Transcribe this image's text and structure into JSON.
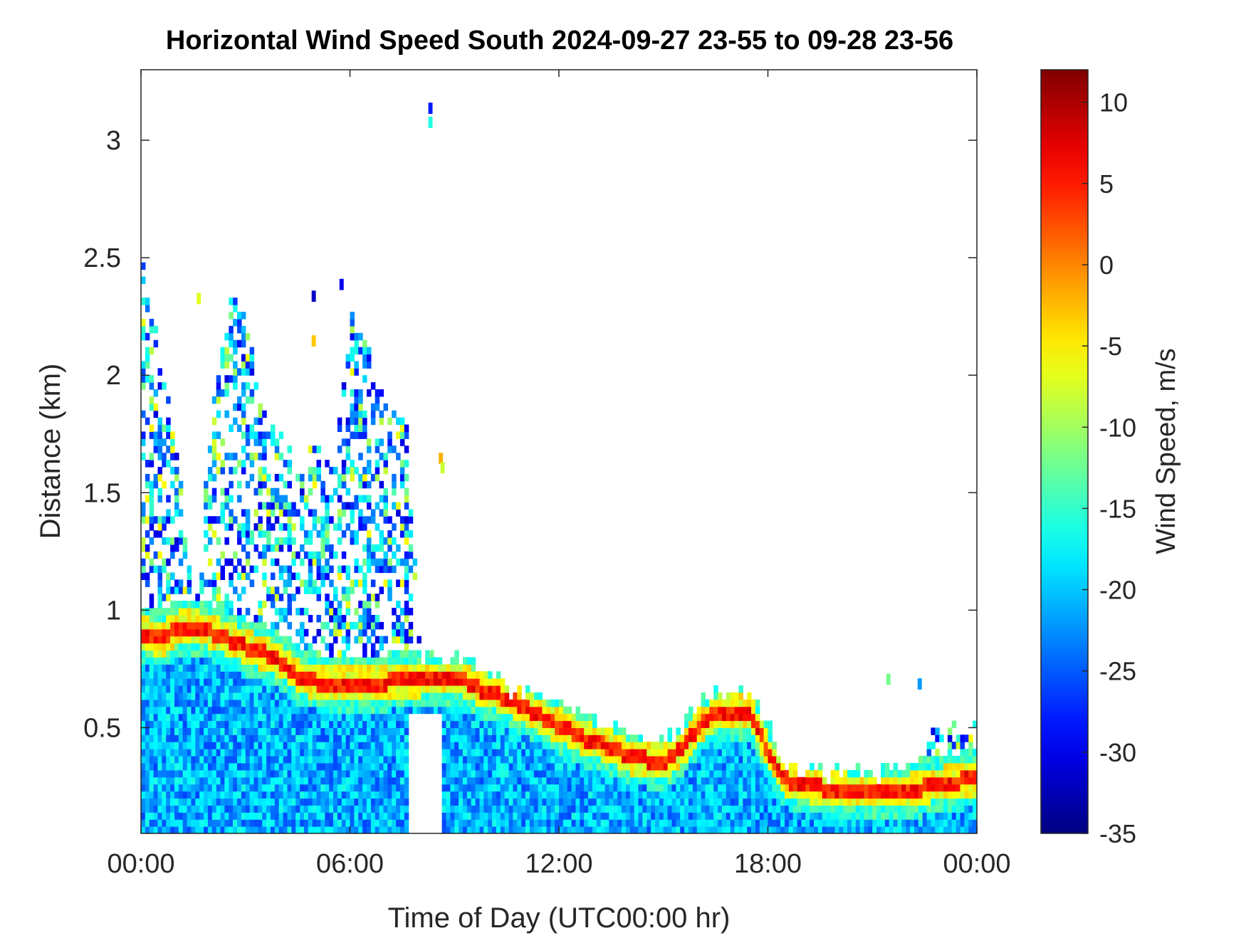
{
  "chart_data": {
    "type": "heatmap",
    "title": "Horizontal Wind Speed South 2024-09-27 23-55 to 09-28 23-56",
    "xlabel": "Time of Day (UTC00:00 hr)",
    "ylabel": "Distance (km)",
    "colorbar_label": "Wind Speed, m/s",
    "x_ticks": [
      {
        "value": 0,
        "label": "00:00"
      },
      {
        "value": 6,
        "label": "06:00"
      },
      {
        "value": 12,
        "label": "12:00"
      },
      {
        "value": 18,
        "label": "18:00"
      },
      {
        "value": 24,
        "label": "00:00"
      }
    ],
    "y_ticks": [
      {
        "value": 0.5,
        "label": "0.5"
      },
      {
        "value": 1,
        "label": "1"
      },
      {
        "value": 1.5,
        "label": "1.5"
      },
      {
        "value": 2,
        "label": "2"
      },
      {
        "value": 2.5,
        "label": "2.5"
      },
      {
        "value": 3,
        "label": "3"
      }
    ],
    "colorbar_ticks": [
      {
        "value": 10,
        "label": "10"
      },
      {
        "value": 5,
        "label": "5"
      },
      {
        "value": 0,
        "label": "0"
      },
      {
        "value": -5,
        "label": "-5"
      },
      {
        "value": -10,
        "label": "-10"
      },
      {
        "value": -15,
        "label": "-15"
      },
      {
        "value": -20,
        "label": "-20"
      },
      {
        "value": -25,
        "label": "-25"
      },
      {
        "value": -30,
        "label": "-30"
      },
      {
        "value": -35,
        "label": "-35"
      }
    ],
    "xlim": [
      0,
      24
    ],
    "ylim": [
      0.05,
      3.3
    ],
    "clim": [
      -35,
      12
    ],
    "colormap": "jet",
    "grid": false,
    "cell_size": {
      "dt_hours": 0.12,
      "dz_km": 0.03
    },
    "jet_band": [
      [
        0.0,
        0.89
      ],
      [
        0.5,
        0.86
      ],
      [
        1.0,
        0.91
      ],
      [
        1.5,
        0.92
      ],
      [
        2.0,
        0.89
      ],
      [
        2.5,
        0.86
      ],
      [
        3.0,
        0.83
      ],
      [
        3.5,
        0.8
      ],
      [
        4.0,
        0.76
      ],
      [
        4.5,
        0.7
      ],
      [
        5.0,
        0.68
      ],
      [
        6.0,
        0.68
      ],
      [
        7.0,
        0.68
      ],
      [
        8.0,
        0.69
      ],
      [
        9.0,
        0.7
      ],
      [
        9.5,
        0.66
      ],
      [
        10.5,
        0.61
      ],
      [
        11.5,
        0.53
      ],
      [
        12.5,
        0.45
      ],
      [
        13.5,
        0.4
      ],
      [
        14.0,
        0.36
      ],
      [
        15.0,
        0.34
      ],
      [
        15.5,
        0.4
      ],
      [
        16.0,
        0.5
      ],
      [
        16.5,
        0.55
      ],
      [
        17.0,
        0.56
      ],
      [
        17.4,
        0.56
      ],
      [
        18.0,
        0.36
      ],
      [
        18.5,
        0.26
      ],
      [
        19.5,
        0.23
      ],
      [
        21.0,
        0.21
      ],
      [
        22.0,
        0.22
      ],
      [
        23.0,
        0.25
      ],
      [
        24.0,
        0.27
      ]
    ],
    "jet_core_speed": 8,
    "coverage_top_km": [
      [
        0.0,
        2.45
      ],
      [
        0.5,
        2.1
      ],
      [
        1.0,
        1.6
      ],
      [
        1.5,
        0.98
      ],
      [
        2.0,
        1.9
      ],
      [
        2.5,
        2.3
      ],
      [
        3.0,
        2.2
      ],
      [
        3.5,
        1.8
      ],
      [
        4.0,
        1.7
      ],
      [
        4.5,
        1.6
      ],
      [
        5.0,
        1.7
      ],
      [
        5.5,
        1.6
      ],
      [
        6.0,
        2.3
      ],
      [
        6.5,
        2.1
      ],
      [
        7.0,
        1.8
      ],
      [
        7.5,
        1.85
      ],
      [
        8.0,
        0.78
      ],
      [
        9.0,
        0.78
      ],
      [
        9.5,
        0.76
      ],
      [
        10.5,
        0.66
      ],
      [
        11.5,
        0.6
      ],
      [
        12.0,
        0.62
      ],
      [
        13.0,
        0.52
      ],
      [
        14.0,
        0.45
      ],
      [
        15.0,
        0.42
      ],
      [
        15.5,
        0.5
      ],
      [
        16.0,
        0.6
      ],
      [
        17.0,
        0.65
      ],
      [
        17.4,
        0.62
      ],
      [
        18.0,
        0.47
      ],
      [
        18.5,
        0.33
      ],
      [
        19.5,
        0.3
      ],
      [
        21.0,
        0.28
      ],
      [
        22.0,
        0.35
      ],
      [
        23.0,
        0.5
      ],
      [
        24.0,
        0.47
      ]
    ],
    "clear_gap": {
      "x_range": [
        7.6,
        8.6
      ],
      "below_km": 0.55
    },
    "isolated_points": [
      {
        "x": 8.25,
        "y": 3.13,
        "value": -28
      },
      {
        "x": 8.25,
        "y": 3.07,
        "value": -16
      },
      {
        "x": 8.55,
        "y": 1.64,
        "value": -2
      },
      {
        "x": 8.6,
        "y": 1.6,
        "value": -8
      },
      {
        "x": 1.6,
        "y": 2.32,
        "value": -7
      },
      {
        "x": 4.9,
        "y": 2.33,
        "value": -32
      },
      {
        "x": 4.9,
        "y": 2.14,
        "value": -3
      },
      {
        "x": 5.7,
        "y": 2.38,
        "value": -30
      },
      {
        "x": 21.4,
        "y": 0.7,
        "value": -12
      },
      {
        "x": 22.3,
        "y": 0.68,
        "value": -22
      }
    ]
  }
}
